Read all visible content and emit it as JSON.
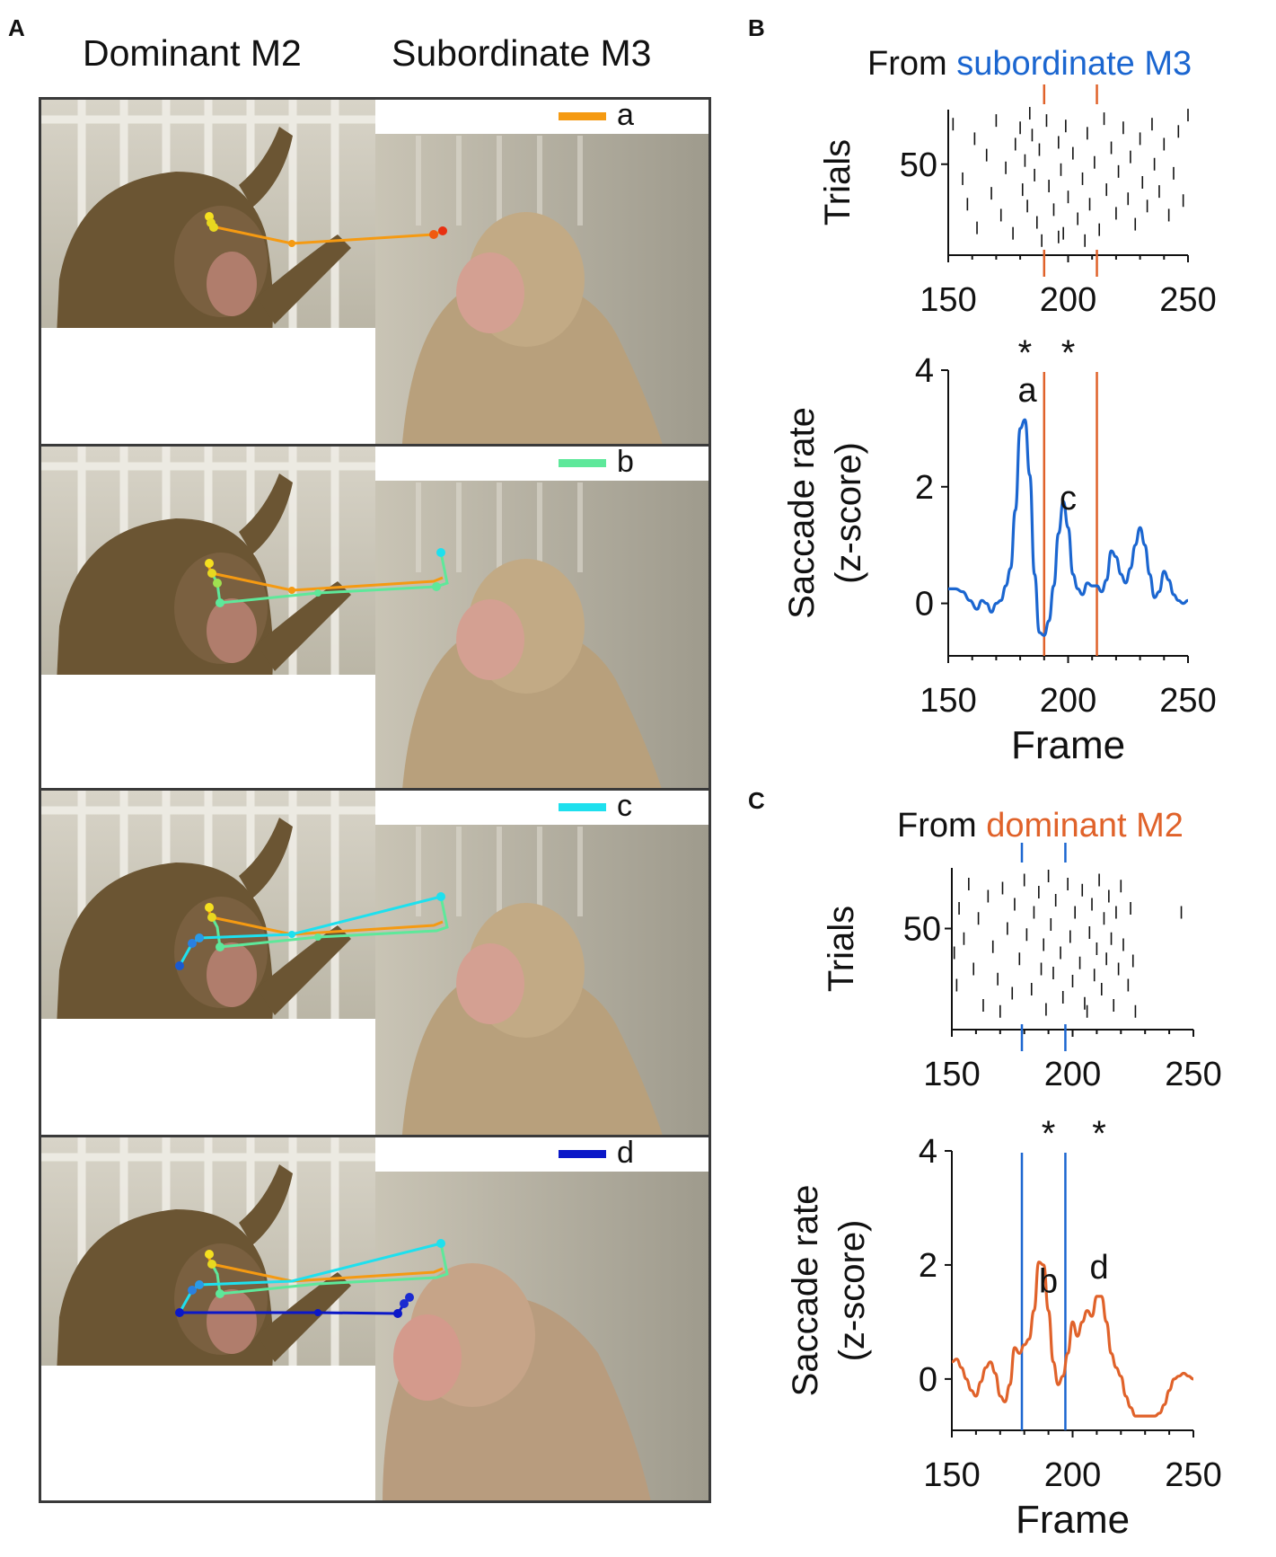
{
  "figure": {
    "panel_labels": {
      "A": "A",
      "B": "B",
      "C": "C"
    },
    "column_titles": {
      "dominant": "Dominant M2",
      "subordinate": "Subordinate M3"
    },
    "photo_panels": [
      {
        "legend": "a",
        "legend_color": "#f59a12"
      },
      {
        "legend": "b",
        "legend_color": "#5ee89a"
      },
      {
        "legend": "c",
        "legend_color": "#1ee0ee"
      },
      {
        "legend": "d",
        "legend_color": "#0b18c8"
      }
    ],
    "colors": {
      "orange": "#e0622a",
      "blue": "#1b66d0",
      "raster": "#111111"
    },
    "B": {
      "title_prefix": "From ",
      "title_highlight": "subordinate M3",
      "title_highlight_color": "#1b66d0",
      "raster_ylabel": "Trials",
      "rate_ylabel_line1": "Saccade rate",
      "rate_ylabel_line2": "(z-score)",
      "xlabel": "Frame",
      "stars": [
        "*",
        "*"
      ],
      "peak_labels": [
        "a",
        "c"
      ]
    },
    "C": {
      "title_prefix": "From ",
      "title_highlight": "dominant M2",
      "title_highlight_color": "#e0622a",
      "raster_ylabel": "Trials",
      "rate_ylabel_line1": "Saccade rate",
      "rate_ylabel_line2": "(z-score)",
      "xlabel": "Frame",
      "stars": [
        "*",
        "*"
      ],
      "peak_labels": [
        "b",
        "d"
      ]
    }
  },
  "chart_data": [
    {
      "id": "B-raster",
      "type": "scatter",
      "title": "From subordinate M3",
      "ylabel": "Trials",
      "xlim": [
        150,
        250
      ],
      "ylim": [
        0,
        80
      ],
      "xticks": [
        150,
        200,
        250
      ],
      "yticks": [
        50
      ],
      "vlines": [
        190,
        212
      ],
      "vline_color": "#e0622a",
      "points": [
        [
          152,
          72
        ],
        [
          156,
          42
        ],
        [
          158,
          28
        ],
        [
          161,
          64
        ],
        [
          162,
          15
        ],
        [
          166,
          55
        ],
        [
          168,
          34
        ],
        [
          170,
          74
        ],
        [
          172,
          22
        ],
        [
          174,
          48
        ],
        [
          177,
          12
        ],
        [
          178,
          61
        ],
        [
          180,
          70
        ],
        [
          181,
          36
        ],
        [
          182,
          52
        ],
        [
          183,
          27
        ],
        [
          185,
          66
        ],
        [
          186,
          44
        ],
        [
          187,
          18
        ],
        [
          188,
          58
        ],
        [
          189,
          8
        ],
        [
          191,
          74
        ],
        [
          192,
          38
        ],
        [
          194,
          25
        ],
        [
          196,
          62
        ],
        [
          197,
          47
        ],
        [
          198,
          12
        ],
        [
          199,
          71
        ],
        [
          200,
          32
        ],
        [
          202,
          56
        ],
        [
          204,
          20
        ],
        [
          206,
          42
        ],
        [
          208,
          67
        ],
        [
          209,
          28
        ],
        [
          211,
          51
        ],
        [
          213,
          14
        ],
        [
          215,
          75
        ],
        [
          216,
          36
        ],
        [
          218,
          59
        ],
        [
          220,
          23
        ],
        [
          221,
          46
        ],
        [
          223,
          70
        ],
        [
          225,
          31
        ],
        [
          226,
          54
        ],
        [
          228,
          17
        ],
        [
          230,
          64
        ],
        [
          231,
          40
        ],
        [
          233,
          27
        ],
        [
          235,
          72
        ],
        [
          236,
          50
        ],
        [
          238,
          35
        ],
        [
          240,
          61
        ],
        [
          242,
          22
        ],
        [
          244,
          45
        ],
        [
          246,
          68
        ],
        [
          248,
          30
        ],
        [
          250,
          77
        ],
        [
          196,
          10
        ],
        [
          184,
          78
        ],
        [
          207,
          8
        ]
      ]
    },
    {
      "id": "B-rate",
      "type": "line",
      "ylabel": "Saccade rate (z-score)",
      "xlabel": "Frame",
      "xlim": [
        150,
        250
      ],
      "ylim": [
        -0.9,
        4
      ],
      "xticks": [
        150,
        200,
        250
      ],
      "yticks": [
        0,
        2,
        4
      ],
      "vlines": [
        190,
        212
      ],
      "vline_color": "#e0622a",
      "series": [
        {
          "name": "From subordinate M3",
          "color": "#1b66d0",
          "x": [
            150,
            153,
            156,
            159,
            162,
            164,
            166,
            168,
            170,
            172,
            174,
            176,
            178,
            180,
            182,
            184,
            186,
            188,
            190,
            192,
            194,
            196,
            198,
            200,
            202,
            204,
            206,
            208,
            210,
            212,
            214,
            216,
            218,
            220,
            222,
            224,
            226,
            228,
            230,
            232,
            234,
            236,
            238,
            240,
            242,
            244,
            246,
            248,
            250
          ],
          "y": [
            0.25,
            0.25,
            0.2,
            0.05,
            -0.1,
            0.05,
            0.0,
            -0.15,
            0.0,
            0.05,
            0.3,
            0.6,
            1.6,
            3.0,
            3.15,
            2.2,
            0.5,
            -0.5,
            -0.55,
            -0.3,
            0.3,
            1.2,
            1.75,
            1.3,
            0.5,
            0.25,
            0.15,
            0.35,
            0.3,
            0.3,
            0.2,
            0.4,
            0.9,
            0.8,
            0.5,
            0.35,
            0.6,
            1.0,
            1.3,
            1.0,
            0.5,
            0.1,
            0.2,
            0.55,
            0.4,
            0.15,
            0.05,
            0.0,
            0.05
          ]
        }
      ],
      "annotations": [
        {
          "text": "*",
          "x": 182
        },
        {
          "text": "*",
          "x": 200
        },
        {
          "text": "a",
          "x": 183
        },
        {
          "text": "c",
          "x": 200
        }
      ]
    },
    {
      "id": "C-raster",
      "type": "scatter",
      "title": "From dominant M2",
      "ylabel": "Trials",
      "xlim": [
        150,
        250
      ],
      "ylim": [
        0,
        80
      ],
      "xticks": [
        150,
        200,
        250
      ],
      "yticks": [
        50
      ],
      "vlines": [
        179,
        197
      ],
      "vline_color": "#1b66d0",
      "points": [
        [
          151,
          38
        ],
        [
          152,
          22
        ],
        [
          153,
          60
        ],
        [
          155,
          45
        ],
        [
          157,
          72
        ],
        [
          159,
          30
        ],
        [
          161,
          55
        ],
        [
          163,
          12
        ],
        [
          165,
          66
        ],
        [
          167,
          41
        ],
        [
          169,
          25
        ],
        [
          171,
          70
        ],
        [
          173,
          50
        ],
        [
          175,
          18
        ],
        [
          176,
          62
        ],
        [
          178,
          35
        ],
        [
          180,
          74
        ],
        [
          181,
          47
        ],
        [
          183,
          20
        ],
        [
          184,
          58
        ],
        [
          186,
          68
        ],
        [
          187,
          30
        ],
        [
          188,
          42
        ],
        [
          189,
          10
        ],
        [
          190,
          76
        ],
        [
          191,
          52
        ],
        [
          192,
          28
        ],
        [
          193,
          64
        ],
        [
          195,
          38
        ],
        [
          196,
          16
        ],
        [
          198,
          72
        ],
        [
          199,
          46
        ],
        [
          200,
          24
        ],
        [
          201,
          58
        ],
        [
          203,
          33
        ],
        [
          204,
          69
        ],
        [
          205,
          13
        ],
        [
          207,
          48
        ],
        [
          208,
          62
        ],
        [
          209,
          27
        ],
        [
          210,
          40
        ],
        [
          211,
          74
        ],
        [
          212,
          20
        ],
        [
          213,
          55
        ],
        [
          214,
          35
        ],
        [
          215,
          66
        ],
        [
          216,
          45
        ],
        [
          217,
          12
        ],
        [
          218,
          58
        ],
        [
          219,
          30
        ],
        [
          220,
          71
        ],
        [
          221,
          42
        ],
        [
          223,
          22
        ],
        [
          224,
          60
        ],
        [
          225,
          34
        ],
        [
          226,
          9
        ],
        [
          245,
          58
        ],
        [
          170,
          9
        ],
        [
          206,
          9
        ]
      ]
    },
    {
      "id": "C-rate",
      "type": "line",
      "ylabel": "Saccade rate (z-score)",
      "xlabel": "Frame",
      "xlim": [
        150,
        250
      ],
      "ylim": [
        -0.9,
        4
      ],
      "xticks": [
        150,
        200,
        250
      ],
      "yticks": [
        0,
        2,
        4
      ],
      "vlines": [
        179,
        197
      ],
      "vline_color": "#1b66d0",
      "series": [
        {
          "name": "From dominant M2",
          "color": "#e0622a",
          "x": [
            150,
            152,
            154,
            156,
            158,
            160,
            162,
            164,
            166,
            168,
            170,
            172,
            174,
            176,
            178,
            180,
            182,
            184,
            186,
            188,
            190,
            192,
            194,
            196,
            198,
            200,
            202,
            204,
            206,
            208,
            210,
            212,
            214,
            216,
            218,
            220,
            222,
            224,
            226,
            228,
            230,
            232,
            234,
            236,
            238,
            240,
            242,
            244,
            246,
            248,
            250
          ],
          "y": [
            0.3,
            0.35,
            0.2,
            0.0,
            -0.2,
            -0.3,
            -0.05,
            0.2,
            0.3,
            0.1,
            -0.3,
            -0.4,
            -0.1,
            0.55,
            0.45,
            0.6,
            0.7,
            1.2,
            2.05,
            2.0,
            1.2,
            0.3,
            -0.1,
            0.05,
            0.45,
            1.0,
            0.75,
            1.0,
            1.2,
            1.1,
            1.45,
            1.45,
            1.0,
            0.45,
            0.2,
            0.05,
            -0.3,
            -0.5,
            -0.65,
            -0.65,
            -0.65,
            -0.65,
            -0.65,
            -0.6,
            -0.45,
            -0.2,
            0.0,
            0.05,
            0.1,
            0.05,
            0.0
          ]
        }
      ],
      "annotations": [
        {
          "text": "*",
          "x": 190
        },
        {
          "text": "*",
          "x": 211
        },
        {
          "text": "b",
          "x": 190
        },
        {
          "text": "d",
          "x": 211
        }
      ]
    }
  ]
}
